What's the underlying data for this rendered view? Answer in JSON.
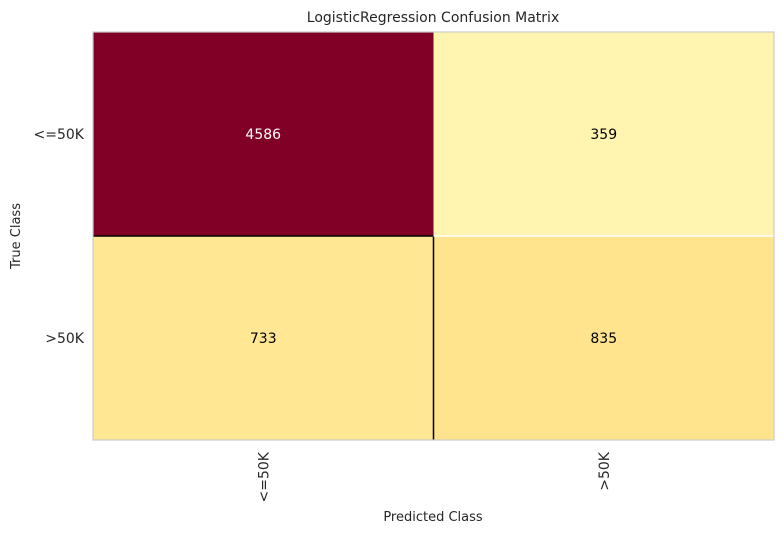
{
  "chart_data": {
    "type": "heatmap",
    "title": "LogisticRegression Confusion Matrix",
    "xlabel": "Predicted Class",
    "ylabel": "True Class",
    "x_categories": [
      "<=50K",
      ">50K"
    ],
    "y_categories": [
      "<=50K",
      ">50K"
    ],
    "values": [
      [
        4586,
        359
      ],
      [
        733,
        835
      ]
    ],
    "colormap": "YlOrRd",
    "grid": false,
    "colors": {
      "max": "#800026",
      "high_mid": "#fed976",
      "low": "#ffffcc",
      "text_dark": "#000000",
      "text_light": "#ffffff"
    }
  }
}
